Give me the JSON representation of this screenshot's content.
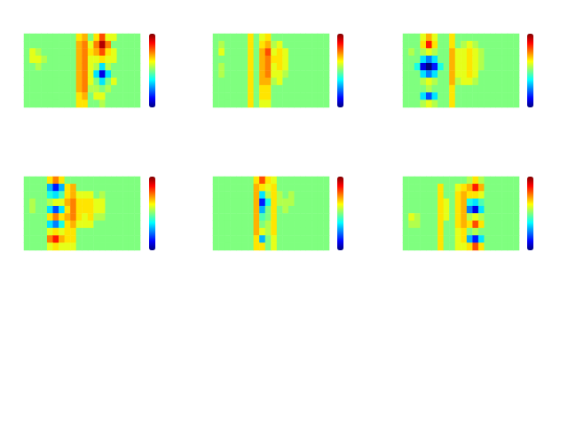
{
  "chart_data": [
    {
      "type": "heatmap",
      "tick_labels": false,
      "color_range": [
        -1,
        1
      ],
      "cells": [
        [
          0,
          0,
          0,
          0,
          0,
          0,
          0,
          0,
          0,
          0.3,
          0.4,
          0,
          0.3,
          0.6,
          0.2,
          0.2,
          0,
          0,
          0,
          0
        ],
        [
          0,
          0,
          0,
          0,
          0,
          0,
          0,
          0,
          0,
          0.4,
          0.5,
          0.2,
          0.5,
          0.9,
          0.5,
          0,
          0,
          0,
          0,
          0
        ],
        [
          0,
          0.2,
          0.1,
          0,
          0,
          0,
          0,
          0,
          0,
          0.4,
          0.5,
          0.3,
          0.4,
          0.6,
          0.3,
          0.2,
          0,
          0,
          0,
          0
        ],
        [
          0,
          0.2,
          0.2,
          0.1,
          0,
          0,
          0,
          0,
          0,
          0.4,
          0.5,
          0.2,
          0.2,
          0.3,
          0.2,
          0.2,
          0,
          0,
          0,
          0
        ],
        [
          0,
          0,
          0.1,
          0,
          0,
          0,
          0,
          0,
          0,
          0.4,
          0.5,
          0.2,
          0.1,
          -0.3,
          0.1,
          0,
          0,
          0,
          0,
          0
        ],
        [
          0,
          0,
          0,
          0,
          0,
          0,
          0,
          0,
          0,
          0.4,
          0.5,
          0.2,
          -0.3,
          -0.8,
          -0.3,
          0,
          0,
          0,
          0,
          0
        ],
        [
          0,
          0,
          0,
          0,
          0,
          0,
          0,
          0,
          0,
          0.4,
          0.5,
          0.2,
          0,
          -0.3,
          0,
          0.2,
          0,
          0,
          0,
          0
        ],
        [
          0,
          0,
          0,
          0,
          0,
          0,
          0,
          0,
          0,
          0.4,
          0.5,
          0.1,
          0.1,
          0,
          0.1,
          0,
          0,
          0,
          0,
          0
        ],
        [
          0,
          0,
          0,
          0,
          0,
          0,
          0,
          0,
          0,
          0.3,
          0.4,
          0,
          0.2,
          0.2,
          0,
          0,
          0,
          0,
          0,
          0
        ],
        [
          0,
          0,
          0,
          0,
          0,
          0,
          0,
          0,
          0,
          0.3,
          0.3,
          0,
          0,
          0.1,
          0,
          0,
          0,
          0,
          0,
          0
        ]
      ]
    },
    {
      "type": "heatmap",
      "tick_labels": false,
      "color_range": [
        -1,
        1
      ],
      "cells": [
        [
          0,
          0,
          0,
          0,
          0,
          0,
          0.3,
          0,
          0.2,
          0.3,
          0,
          0,
          0,
          0,
          0,
          0,
          0,
          0,
          0,
          0
        ],
        [
          0,
          0.1,
          0,
          0,
          0,
          0,
          0.3,
          0,
          0.3,
          0.4,
          0.1,
          0.2,
          0,
          0,
          0,
          0,
          0,
          0,
          0,
          0
        ],
        [
          0,
          0.2,
          0,
          0,
          0,
          0,
          0.3,
          0,
          0.4,
          0.6,
          0.2,
          0.3,
          0.2,
          0,
          0,
          0,
          0,
          0,
          0,
          0
        ],
        [
          0,
          0,
          0,
          0,
          0,
          0,
          0.3,
          0,
          0.4,
          0.5,
          0.3,
          0.3,
          0.2,
          0,
          0,
          0,
          0,
          0,
          0,
          0
        ],
        [
          0,
          0.1,
          0,
          0,
          0,
          0,
          0.3,
          0,
          0.4,
          0.5,
          0.2,
          0.3,
          0.2,
          0,
          0,
          0,
          0,
          0,
          0,
          0
        ],
        [
          0,
          0.1,
          0,
          0,
          0,
          0,
          0.3,
          0,
          0.4,
          0.5,
          0.2,
          0.2,
          0.1,
          0,
          0,
          0,
          0,
          0,
          0,
          0
        ],
        [
          0,
          0,
          0,
          0,
          0,
          0,
          0.3,
          0,
          0.4,
          0.4,
          0.1,
          0.2,
          0,
          0,
          0,
          0,
          0,
          0,
          0,
          0
        ],
        [
          0,
          0,
          0,
          0,
          0,
          0,
          0.3,
          0,
          0.3,
          0.3,
          0,
          0,
          0,
          0,
          0,
          0,
          0,
          0,
          0,
          0
        ],
        [
          0,
          0,
          0,
          0,
          0,
          0,
          0.3,
          0,
          0.3,
          0.3,
          0,
          0,
          0,
          0,
          0,
          0,
          0,
          0,
          0,
          0
        ],
        [
          0,
          0,
          0,
          0,
          0,
          0,
          0.3,
          0,
          0.2,
          0.2,
          0,
          0,
          0,
          0,
          0,
          0,
          0,
          0,
          0,
          0
        ]
      ]
    },
    {
      "type": "heatmap",
      "tick_labels": false,
      "color_range": [
        -1,
        1
      ],
      "cells": [
        [
          0,
          0,
          0,
          0.2,
          0.4,
          0.2,
          0,
          0,
          0.3,
          0,
          0,
          0,
          0,
          0,
          0,
          0,
          0,
          0,
          0,
          0
        ],
        [
          0,
          0,
          0,
          0.3,
          0.7,
          0.3,
          0,
          0,
          0.3,
          0,
          0.1,
          0.2,
          0.1,
          0,
          0,
          0,
          0,
          0,
          0,
          0
        ],
        [
          0,
          0.1,
          0,
          0.1,
          0.2,
          0.1,
          0,
          0,
          0.4,
          0.2,
          0.2,
          0.3,
          0.2,
          0.1,
          0,
          0,
          0,
          0,
          0,
          0
        ],
        [
          0,
          0,
          0,
          -0.3,
          -0.5,
          -0.3,
          0,
          0,
          0.4,
          0.2,
          0.2,
          0.3,
          0.2,
          0.1,
          0,
          0,
          0,
          0,
          0,
          0
        ],
        [
          0,
          0,
          -0.2,
          -0.8,
          -1.0,
          -0.7,
          -0.2,
          0,
          0.4,
          0.2,
          0.2,
          0.3,
          0.2,
          0.1,
          0,
          0,
          0,
          0,
          0,
          0
        ],
        [
          0,
          0,
          0,
          -0.3,
          -0.5,
          -0.3,
          0,
          0,
          0.4,
          0.2,
          0.2,
          0.3,
          0.2,
          0,
          0,
          0,
          0,
          0,
          0,
          0
        ],
        [
          0,
          0,
          0,
          0.1,
          0.2,
          0.1,
          0,
          0,
          0.4,
          0.1,
          0.2,
          0.2,
          0.1,
          0,
          0,
          0,
          0,
          0,
          0,
          0
        ],
        [
          0,
          0,
          0,
          0,
          0.1,
          0,
          0,
          0,
          0.3,
          0,
          0,
          0,
          0,
          0,
          0,
          0,
          0,
          0,
          0,
          0
        ],
        [
          0,
          0,
          0,
          -0.3,
          -0.6,
          -0.3,
          0,
          0,
          0.3,
          0,
          0,
          0,
          0,
          0,
          0,
          0,
          0,
          0,
          0,
          0
        ],
        [
          0,
          0,
          0,
          0.1,
          0.2,
          0.1,
          0,
          0,
          0.3,
          0,
          0,
          0,
          0,
          0,
          0,
          0,
          0,
          0,
          0,
          0
        ]
      ]
    },
    {
      "type": "heatmap",
      "tick_labels": false,
      "color_range": [
        -1,
        1
      ],
      "cells": [
        [
          0,
          0,
          0,
          0,
          0.3,
          0.5,
          0.3,
          0,
          0,
          0,
          0,
          0,
          0,
          0,
          0,
          0,
          0,
          0,
          0,
          0
        ],
        [
          0,
          0,
          0,
          0,
          -0.4,
          -0.7,
          -0.4,
          0.3,
          0.4,
          0,
          0,
          0,
          0,
          0,
          0,
          0,
          0,
          0,
          0,
          0
        ],
        [
          0,
          0,
          0,
          0,
          -0.2,
          -0.3,
          -0.1,
          0.3,
          0.4,
          0.2,
          0.2,
          0.2,
          0,
          0.1,
          0,
          0,
          0,
          0,
          0,
          0
        ],
        [
          0,
          0.1,
          0,
          0,
          0.1,
          0.2,
          0.2,
          0.4,
          0.5,
          0.3,
          0.3,
          0.3,
          0.2,
          0.2,
          0,
          0,
          0,
          0,
          0,
          0
        ],
        [
          0,
          0.1,
          0,
          0,
          -0.3,
          -0.6,
          -0.3,
          0.3,
          0.5,
          0.3,
          0.3,
          0.3,
          0.2,
          0.2,
          0,
          0,
          0,
          0,
          0,
          0
        ],
        [
          0,
          0,
          0,
          0,
          0.3,
          0.5,
          0.3,
          0.4,
          0.5,
          0.3,
          0.2,
          0.3,
          0.1,
          0.1,
          0,
          0,
          0,
          0,
          0,
          0
        ],
        [
          0,
          0,
          0,
          0,
          -0.3,
          -0.5,
          -0.2,
          0.3,
          0.4,
          0.2,
          0.2,
          0.2,
          0,
          0,
          0,
          0,
          0,
          0,
          0,
          0
        ],
        [
          0,
          0,
          0,
          0,
          0.2,
          0.3,
          0.2,
          0.3,
          0.3,
          0,
          0,
          0,
          0,
          0,
          0,
          0,
          0,
          0,
          0,
          0
        ],
        [
          0,
          0,
          0,
          0,
          0.5,
          0.7,
          0.4,
          0.3,
          0.3,
          0,
          0,
          0,
          0,
          0,
          0,
          0,
          0,
          0,
          0,
          0
        ],
        [
          0,
          0,
          0,
          0,
          0.2,
          0.3,
          0.2,
          0.2,
          0.2,
          0,
          0,
          0,
          0,
          0,
          0,
          0,
          0,
          0,
          0,
          0
        ]
      ]
    },
    {
      "type": "heatmap",
      "tick_labels": false,
      "color_range": [
        -1,
        1
      ],
      "cells": [
        [
          0,
          0,
          0,
          0,
          0,
          0,
          0,
          0.3,
          0.6,
          0.3,
          0.2,
          0,
          0,
          0,
          0,
          0,
          0,
          0,
          0,
          0
        ],
        [
          0,
          0,
          0,
          0,
          0,
          0,
          0,
          0.4,
          0.3,
          0.2,
          0.3,
          0,
          0,
          0,
          0,
          0,
          0,
          0,
          0,
          0
        ],
        [
          0,
          0,
          0,
          0,
          0,
          0,
          0,
          0.4,
          -0.3,
          0.1,
          0.3,
          0.1,
          0,
          0.1,
          0,
          0,
          0,
          0,
          0,
          0
        ],
        [
          0,
          0,
          0,
          0,
          0,
          0,
          0,
          0.4,
          -0.7,
          -0.2,
          0.3,
          0.1,
          0.1,
          0.1,
          0,
          0,
          0,
          0,
          0,
          0
        ],
        [
          0,
          0,
          0,
          0,
          0,
          0,
          0,
          0.4,
          -0.4,
          0,
          0.3,
          0,
          0.1,
          0,
          0,
          0,
          0,
          0,
          0,
          0
        ],
        [
          0,
          0,
          0,
          0,
          0,
          0,
          0,
          0.4,
          -0.1,
          0,
          0.3,
          0,
          0,
          0,
          0,
          0,
          0,
          0,
          0,
          0
        ],
        [
          0,
          0,
          0,
          0,
          0,
          0,
          0,
          0.4,
          0,
          0.1,
          0.3,
          0,
          0,
          0,
          0,
          0,
          0,
          0,
          0,
          0
        ],
        [
          0,
          0,
          0,
          0,
          0,
          0,
          0,
          0.4,
          0.2,
          0.1,
          0.3,
          0,
          0,
          0,
          0,
          0,
          0,
          0,
          0,
          0
        ],
        [
          0,
          0,
          0,
          0,
          0,
          0,
          0,
          0.3,
          -0.4,
          0,
          0.2,
          0,
          0,
          0,
          0,
          0,
          0,
          0,
          0,
          0
        ],
        [
          0,
          0,
          0,
          0,
          0,
          0,
          0,
          0.3,
          0.3,
          0,
          0.2,
          0,
          0,
          0,
          0,
          0,
          0,
          0,
          0,
          0
        ]
      ]
    },
    {
      "type": "heatmap",
      "tick_labels": false,
      "color_range": [
        -1,
        1
      ],
      "cells": [
        [
          0,
          0,
          0,
          0,
          0,
          0,
          0,
          0,
          0,
          0,
          0,
          0.1,
          0.3,
          0.1,
          0,
          0,
          0,
          0,
          0,
          0
        ],
        [
          0,
          0,
          0,
          0,
          0,
          0,
          0.3,
          0,
          0,
          0.2,
          0.3,
          0.4,
          0.7,
          0.4,
          0,
          0,
          0,
          0,
          0,
          0
        ],
        [
          0,
          0,
          0,
          0,
          0,
          0,
          0.3,
          0,
          0,
          0.3,
          0.4,
          0.3,
          0.3,
          0.2,
          0,
          0,
          0,
          0,
          0,
          0
        ],
        [
          0,
          0,
          0,
          0,
          0,
          0,
          0.3,
          0.2,
          0,
          0.3,
          0.4,
          -0.2,
          -0.3,
          -0.1,
          0,
          0,
          0,
          0,
          0,
          0
        ],
        [
          0,
          0,
          0,
          0,
          0,
          0,
          0.3,
          0.2,
          0,
          0.3,
          0.4,
          -0.5,
          -0.8,
          -0.3,
          0,
          0,
          0,
          0,
          0,
          0
        ],
        [
          0,
          0.2,
          0.1,
          0,
          0,
          0,
          0.3,
          0.2,
          0,
          0.3,
          0.4,
          0.1,
          0.2,
          0.1,
          0,
          0,
          0,
          0,
          0,
          0
        ],
        [
          0,
          0.1,
          0.1,
          0,
          0,
          0,
          0.3,
          0,
          0,
          0.3,
          0.4,
          0.3,
          0.6,
          0.3,
          0,
          0,
          0,
          0,
          0,
          0
        ],
        [
          0,
          0,
          0,
          0,
          0,
          0,
          0.3,
          0,
          0,
          0.2,
          0.3,
          0,
          0.1,
          0,
          0,
          0,
          0,
          0,
          0,
          0
        ],
        [
          0,
          0,
          0,
          0,
          0,
          0,
          0.3,
          0,
          0,
          0.2,
          0.3,
          -0.4,
          -0.7,
          -0.3,
          0,
          0,
          0,
          0,
          0,
          0
        ],
        [
          0,
          0,
          0,
          0,
          0,
          0,
          0.3,
          0,
          0,
          0.2,
          0.2,
          0.3,
          0.6,
          0.3,
          0,
          0,
          0,
          0,
          0,
          0
        ]
      ]
    }
  ]
}
